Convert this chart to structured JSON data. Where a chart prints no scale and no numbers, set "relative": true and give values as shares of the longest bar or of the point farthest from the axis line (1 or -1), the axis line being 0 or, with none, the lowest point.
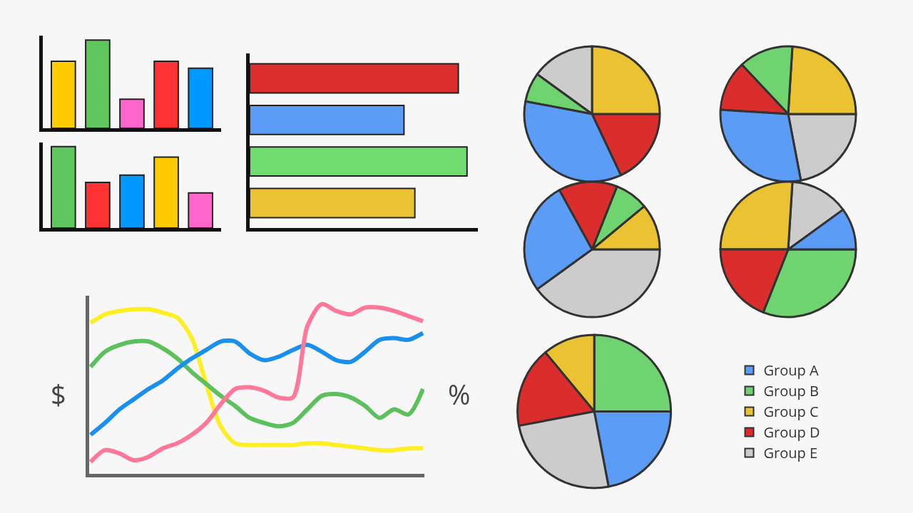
{
  "chart_data": [
    {
      "type": "bar",
      "relative": true,
      "categories": [
        null,
        null,
        null,
        null,
        null
      ],
      "values": [
        0.76,
        1,
        0.33,
        0.76,
        0.68
      ],
      "colors": [
        "#ffcc00",
        "#5ec85e",
        "#ff66cc",
        "#ff3333",
        "#0099ff"
      ]
    },
    {
      "type": "bar",
      "relative": true,
      "categories": [
        null,
        null,
        null,
        null,
        null
      ],
      "values": [
        1,
        0.56,
        0.65,
        0.87,
        0.43
      ],
      "colors": [
        "#5ec85e",
        "#ff3333",
        "#0099ff",
        "#ffcc00",
        "#ff66cc"
      ]
    },
    {
      "type": "bar",
      "relative": true,
      "orientation": "horizontal",
      "categories": [
        null,
        null,
        null,
        null
      ],
      "values": [
        0.96,
        0.71,
        1,
        0.76
      ],
      "colors": [
        "#dd2e2e",
        "#5b9cf6",
        "#6fdc6f",
        "#ebc232"
      ]
    },
    {
      "type": "line",
      "relative": true,
      "ylabel": "$",
      "y2label": "%",
      "categories": [
        null,
        null,
        null,
        null,
        null,
        null,
        null,
        null,
        null,
        null,
        null,
        null,
        null,
        null,
        null,
        null,
        null,
        null,
        null,
        null,
        null,
        null,
        null,
        null
      ],
      "series": [
        {
          "color": "#ffee22",
          "values": [
            0.89,
            0.94,
            0.96,
            0.97,
            0.97,
            0.95,
            0.92,
            0.8,
            0.53,
            0.28,
            0.18,
            0.17,
            0.17,
            0.17,
            0.17,
            0.18,
            0.18,
            0.17,
            0.16,
            0.15,
            0.14,
            0.14,
            0.15,
            0.15
          ]
        },
        {
          "color": "#5cc15c",
          "values": [
            0.63,
            0.72,
            0.76,
            0.78,
            0.78,
            0.74,
            0.68,
            0.6,
            0.53,
            0.46,
            0.4,
            0.33,
            0.3,
            0.28,
            0.3,
            0.38,
            0.46,
            0.47,
            0.45,
            0.4,
            0.33,
            0.38,
            0.35,
            0.5
          ]
        },
        {
          "color": "#1a90ee",
          "values": [
            0.23,
            0.3,
            0.38,
            0.44,
            0.5,
            0.55,
            0.62,
            0.68,
            0.73,
            0.78,
            0.78,
            0.71,
            0.67,
            0.69,
            0.73,
            0.76,
            0.72,
            0.67,
            0.66,
            0.72,
            0.79,
            0.8,
            0.79,
            0.83
          ]
        },
        {
          "color": "#ff7799",
          "values": [
            0.07,
            0.14,
            0.12,
            0.08,
            0.1,
            0.15,
            0.18,
            0.23,
            0.3,
            0.41,
            0.5,
            0.51,
            0.49,
            0.45,
            0.45,
            0.87,
            1,
            0.96,
            0.94,
            0.98,
            0.98,
            0.96,
            0.93,
            0.9
          ]
        }
      ]
    },
    {
      "type": "pie",
      "categories": [
        null,
        null,
        null,
        null,
        null
      ],
      "values": [
        18,
        25,
        15,
        7,
        35
      ],
      "colors": [
        "#dc2d2d",
        "#ebc232",
        "#cccccc",
        "#6fd36f",
        "#5b9cf6"
      ]
    },
    {
      "type": "pie",
      "categories": [
        null,
        null,
        null,
        null,
        null
      ],
      "values": [
        22,
        24,
        13,
        12,
        29
      ],
      "colors": [
        "#cccccc",
        "#ebc232",
        "#6fd36f",
        "#dc2d2d",
        "#5b9cf6"
      ]
    },
    {
      "type": "pie",
      "categories": [
        null,
        null,
        null,
        null,
        null
      ],
      "values": [
        40,
        11,
        8,
        14,
        27
      ],
      "colors": [
        "#cccccc",
        "#ebc232",
        "#6fd36f",
        "#dc2d2d",
        "#5b9cf6"
      ]
    },
    {
      "type": "pie",
      "categories": [
        null,
        null,
        null,
        null,
        null
      ],
      "values": [
        31,
        10,
        14,
        26,
        19
      ],
      "colors": [
        "#6fd36f",
        "#5b9cf6",
        "#cccccc",
        "#ebc232",
        "#dc2d2d"
      ]
    },
    {
      "type": "pie",
      "legend": "right",
      "categories": [
        "Group A",
        "Group B",
        "Group C",
        "Group D",
        "Group E"
      ],
      "values": [
        22,
        25,
        11,
        17,
        25
      ],
      "colors": [
        "#5b9cf6",
        "#6fd36f",
        "#ebc232",
        "#dc2d2d",
        "#cccccc"
      ]
    }
  ]
}
